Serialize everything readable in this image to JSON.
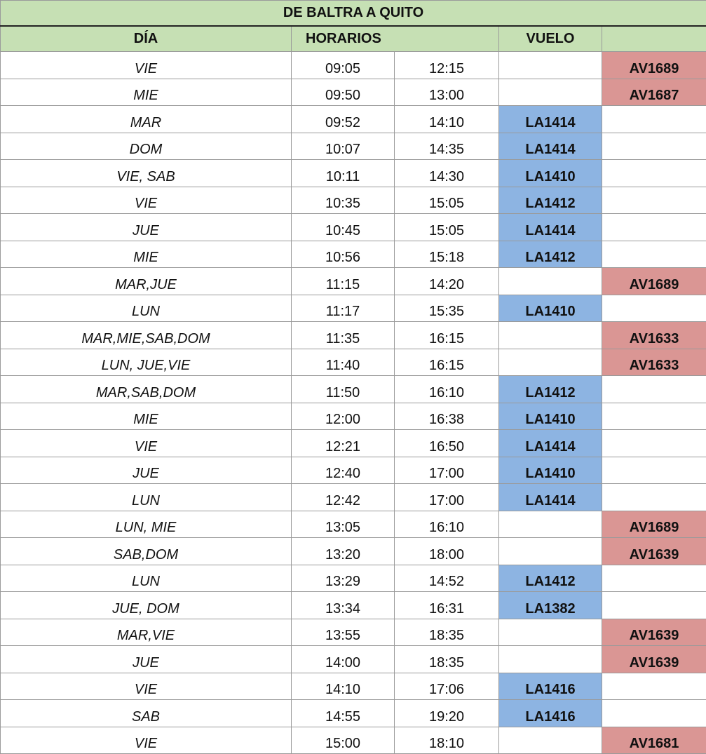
{
  "title": "DE BALTRA A QUITO",
  "headers": {
    "dia": "DÍA",
    "horarios": "HORARIOS",
    "vuelo": "VUELO"
  },
  "colors": {
    "header_bg": "#c6e0b4",
    "latam_bg": "#8db4e2",
    "avianca_bg": "#da9694"
  },
  "rows": [
    {
      "dia": "VIE",
      "salida": "09:05",
      "llegada": "12:15",
      "la": "",
      "av": "AV1689"
    },
    {
      "dia": "MIE",
      "salida": "09:50",
      "llegada": "13:00",
      "la": "",
      "av": "AV1687"
    },
    {
      "dia": "MAR",
      "salida": "09:52",
      "llegada": "14:10",
      "la": "LA1414",
      "av": ""
    },
    {
      "dia": "DOM",
      "salida": "10:07",
      "llegada": "14:35",
      "la": "LA1414",
      "av": ""
    },
    {
      "dia": "VIE, SAB",
      "salida": "10:11",
      "llegada": "14:30",
      "la": "LA1410",
      "av": ""
    },
    {
      "dia": "VIE",
      "salida": "10:35",
      "llegada": "15:05",
      "la": "LA1412",
      "av": ""
    },
    {
      "dia": "JUE",
      "salida": "10:45",
      "llegada": "15:05",
      "la": "LA1414",
      "av": ""
    },
    {
      "dia": "MIE",
      "salida": "10:56",
      "llegada": "15:18",
      "la": "LA1412",
      "av": ""
    },
    {
      "dia": "MAR,JUE",
      "salida": "11:15",
      "llegada": "14:20",
      "la": "",
      "av": "AV1689"
    },
    {
      "dia": "LUN",
      "salida": "11:17",
      "llegada": "15:35",
      "la": "LA1410",
      "av": ""
    },
    {
      "dia": "MAR,MIE,SAB,DOM",
      "salida": "11:35",
      "llegada": "16:15",
      "la": "",
      "av": "AV1633"
    },
    {
      "dia": "LUN, JUE,VIE",
      "salida": "11:40",
      "llegada": "16:15",
      "la": "",
      "av": "AV1633"
    },
    {
      "dia": "MAR,SAB,DOM",
      "salida": "11:50",
      "llegada": "16:10",
      "la": "LA1412",
      "av": ""
    },
    {
      "dia": "MIE",
      "salida": "12:00",
      "llegada": "16:38",
      "la": "LA1410",
      "av": ""
    },
    {
      "dia": "VIE",
      "salida": "12:21",
      "llegada": "16:50",
      "la": "LA1414",
      "av": ""
    },
    {
      "dia": "JUE",
      "salida": "12:40",
      "llegada": "17:00",
      "la": "LA1410",
      "av": ""
    },
    {
      "dia": "LUN",
      "salida": "12:42",
      "llegada": "17:00",
      "la": "LA1414",
      "av": ""
    },
    {
      "dia": "LUN, MIE",
      "salida": "13:05",
      "llegada": "16:10",
      "la": "",
      "av": "AV1689"
    },
    {
      "dia": "SAB,DOM",
      "salida": "13:20",
      "llegada": "18:00",
      "la": "",
      "av": "AV1639"
    },
    {
      "dia": "LUN",
      "salida": "13:29",
      "llegada": "14:52",
      "la": "LA1412",
      "av": ""
    },
    {
      "dia": "JUE, DOM",
      "salida": "13:34",
      "llegada": "16:31",
      "la": "LA1382",
      "av": ""
    },
    {
      "dia": "MAR,VIE",
      "salida": "13:55",
      "llegada": "18:35",
      "la": "",
      "av": "AV1639"
    },
    {
      "dia": "JUE",
      "salida": "14:00",
      "llegada": "18:35",
      "la": "",
      "av": "AV1639"
    },
    {
      "dia": "VIE",
      "salida": "14:10",
      "llegada": "17:06",
      "la": "LA1416",
      "av": ""
    },
    {
      "dia": "SAB",
      "salida": "14:55",
      "llegada": "19:20",
      "la": "LA1416",
      "av": ""
    },
    {
      "dia": "VIE",
      "salida": "15:00",
      "llegada": "18:10",
      "la": "",
      "av": "AV1681"
    }
  ]
}
